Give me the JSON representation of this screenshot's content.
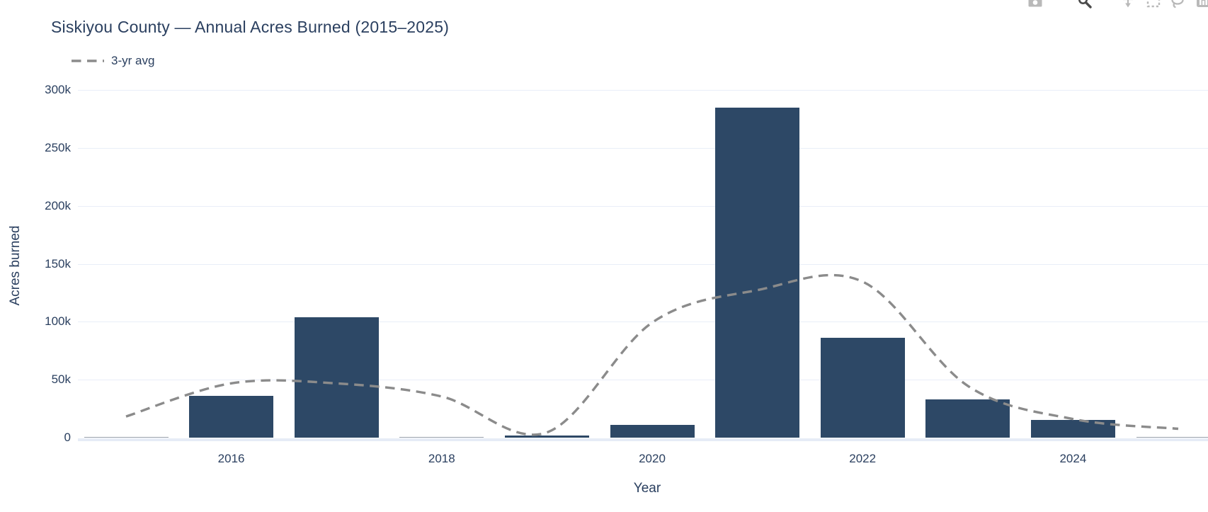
{
  "header": {
    "title": "Siskiyou County — Annual Acres Burned (2015–2025)"
  },
  "legend": {
    "label": "3-yr avg"
  },
  "axes": {
    "x_title": "Year",
    "y_title": "Acres burned",
    "y_ticks": [
      {
        "label": "0",
        "value": 0
      },
      {
        "label": "50k",
        "value": 50000
      },
      {
        "label": "100k",
        "value": 100000
      },
      {
        "label": "150k",
        "value": 150000
      },
      {
        "label": "200k",
        "value": 200000
      },
      {
        "label": "250k",
        "value": 250000
      },
      {
        "label": "300k",
        "value": 300000
      }
    ],
    "x_ticks": [
      {
        "label": "2016",
        "year": 2016
      },
      {
        "label": "2018",
        "year": 2018
      },
      {
        "label": "2020",
        "year": 2020
      },
      {
        "label": "2022",
        "year": 2022
      },
      {
        "label": "2024",
        "year": 2024
      }
    ]
  },
  "modebar": {
    "icons": [
      "download-plot-icon",
      "zoom-icon",
      "pan-icon",
      "box-select-icon",
      "lasso-select-icon",
      "plotly-logo-icon"
    ]
  },
  "colors": {
    "bar": "#2d4866",
    "avg_line": "#8b8b8b",
    "text": "#2a3f5f",
    "gridline": "#e9eef8",
    "zeroline": "#e6ecf6",
    "modebar_icon": "#b9b9b9",
    "modebar_icon_active": "#4a4a4a"
  },
  "chart_data": {
    "type": "bar",
    "title": "Siskiyou County — Annual Acres Burned (2015–2025)",
    "xlabel": "Year",
    "ylabel": "Acres burned",
    "x": [
      2015,
      2016,
      2017,
      2018,
      2019,
      2020,
      2021,
      2022,
      2023,
      2024,
      2025
    ],
    "series": [
      {
        "name": "Acres burned",
        "type": "bar",
        "values": [
          600,
          36000,
          104000,
          500,
          2000,
          11000,
          285000,
          86000,
          33000,
          15000,
          300
        ]
      },
      {
        "name": "3-yr avg",
        "type": "line",
        "style": "dashed",
        "values": [
          18300,
          46867,
          46833,
          35500,
          4500,
          99333,
          127333,
          134667,
          44667,
          16100,
          7650
        ]
      }
    ],
    "ylim": [
      0,
      313000
    ],
    "x_tick_labels": [
      "2016",
      "2018",
      "2020",
      "2022",
      "2024"
    ],
    "grid": "horizontal",
    "legend_position": "top-left"
  }
}
